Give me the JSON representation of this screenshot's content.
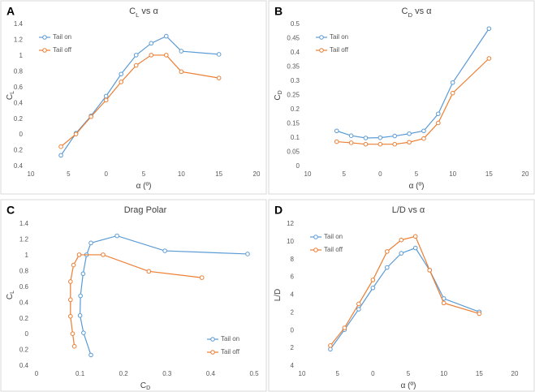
{
  "chart_data": [
    {
      "type": "line",
      "panel": "A",
      "title": [
        "C",
        "L",
        " vs α"
      ],
      "xlabel": [
        "α (º)"
      ],
      "ylabel": [
        "C",
        "L"
      ],
      "x": [
        -6,
        -4,
        -2,
        0,
        2,
        4,
        6,
        8,
        10,
        15
      ],
      "series": [
        {
          "name": "Tail on",
          "color": "#5b9bd5",
          "values": [
            -0.26,
            0.02,
            0.24,
            0.49,
            0.77,
            1.01,
            1.16,
            1.25,
            1.06,
            1.02
          ]
        },
        {
          "name": "Tail off",
          "color": "#ed7d31",
          "values": [
            -0.15,
            0.01,
            0.23,
            0.44,
            0.67,
            0.88,
            1.01,
            1.01,
            0.8,
            0.72
          ]
        }
      ],
      "xlim": [
        -10,
        20
      ],
      "xticks": [
        {
          "value": -10,
          "label": "10"
        },
        {
          "value": -5,
          "label": "5"
        },
        0,
        5,
        10,
        15,
        20
      ],
      "ylim": [
        -0.4,
        1.4
      ],
      "yticks": [
        {
          "value": -0.4,
          "label": "0.4"
        },
        {
          "value": -0.2,
          "label": "0.2"
        },
        0,
        0.2,
        0.4,
        0.6,
        0.8,
        1,
        1.2,
        1.4
      ],
      "legend": "upper left",
      "grid": false
    },
    {
      "type": "line",
      "panel": "B",
      "title": [
        "C",
        "D",
        " vs α"
      ],
      "xlabel": [
        "α (º)"
      ],
      "ylabel": [
        "C",
        "D"
      ],
      "x": [
        -6,
        -4,
        -2,
        0,
        2,
        4,
        6,
        8,
        10,
        15
      ],
      "series": [
        {
          "name": "Tail on",
          "color": "#5b9bd5",
          "values": [
            0.125,
            0.108,
            0.1,
            0.101,
            0.107,
            0.115,
            0.125,
            0.185,
            0.295,
            0.485
          ]
        },
        {
          "name": "Tail off",
          "color": "#ed7d31",
          "values": [
            0.087,
            0.083,
            0.078,
            0.078,
            0.078,
            0.085,
            0.098,
            0.153,
            0.258,
            0.38
          ]
        }
      ],
      "xlim": [
        -10,
        20
      ],
      "xticks": [
        {
          "value": -10,
          "label": "10"
        },
        {
          "value": -5,
          "label": "5"
        },
        0,
        5,
        10,
        15,
        20
      ],
      "ylim": [
        0,
        0.5
      ],
      "yticks": [
        0,
        0.05,
        0.1,
        0.15,
        0.2,
        0.25,
        0.3,
        0.35,
        0.4,
        0.45,
        0.5
      ],
      "legend": "upper left",
      "grid": false
    },
    {
      "type": "scatter",
      "panel": "C",
      "title": [
        "Drag Polar"
      ],
      "xlabel": [
        "C",
        "D"
      ],
      "ylabel": [
        "C",
        "L"
      ],
      "series": [
        {
          "name": "Tail on",
          "color": "#5b9bd5",
          "x": [
            0.125,
            0.108,
            0.1,
            0.101,
            0.107,
            0.115,
            0.125,
            0.185,
            0.295,
            0.485
          ],
          "y": [
            -0.26,
            0.02,
            0.24,
            0.49,
            0.77,
            1.01,
            1.16,
            1.25,
            1.06,
            1.02
          ]
        },
        {
          "name": "Tail off",
          "color": "#ed7d31",
          "x": [
            0.087,
            0.083,
            0.078,
            0.078,
            0.078,
            0.085,
            0.098,
            0.153,
            0.258,
            0.38
          ],
          "y": [
            -0.15,
            0.01,
            0.23,
            0.44,
            0.67,
            0.88,
            1.01,
            1.01,
            0.8,
            0.72
          ]
        }
      ],
      "xlim": [
        0,
        0.5
      ],
      "xticks": [
        0,
        0.1,
        0.2,
        0.3,
        0.4,
        0.5
      ],
      "ylim": [
        -0.4,
        1.4
      ],
      "yticks": [
        {
          "value": -0.4,
          "label": "0.4"
        },
        {
          "value": -0.2,
          "label": "0.2"
        },
        0,
        0.2,
        0.4,
        0.6,
        0.8,
        1,
        1.2,
        1.4
      ],
      "legend": "lower right",
      "grid": false
    },
    {
      "type": "line",
      "panel": "D",
      "title": [
        "L/D vs α"
      ],
      "xlabel": [
        "α (º)"
      ],
      "ylabel": [
        "L/D"
      ],
      "x": [
        -6,
        -4,
        -2,
        0,
        2,
        4,
        6,
        8,
        10,
        15
      ],
      "series": [
        {
          "name": "Tail on",
          "color": "#5b9bd5",
          "values": [
            -2.1,
            0.1,
            2.4,
            4.8,
            7.1,
            8.7,
            9.3,
            6.8,
            3.6,
            2.1
          ]
        },
        {
          "name": "Tail off",
          "color": "#ed7d31",
          "values": [
            -1.7,
            0.3,
            3.0,
            5.7,
            8.9,
            10.2,
            10.6,
            6.8,
            3.1,
            1.9
          ]
        }
      ],
      "xlim": [
        -10,
        20
      ],
      "xticks": [
        {
          "value": -10,
          "label": "10"
        },
        {
          "value": -5,
          "label": "5"
        },
        0,
        5,
        10,
        15,
        20
      ],
      "ylim": [
        -4,
        12
      ],
      "yticks": [
        {
          "value": -4,
          "label": "4"
        },
        {
          "value": -2,
          "label": "2"
        },
        0,
        2,
        4,
        6,
        8,
        10,
        12
      ],
      "legend": "upper left",
      "grid": false
    }
  ]
}
